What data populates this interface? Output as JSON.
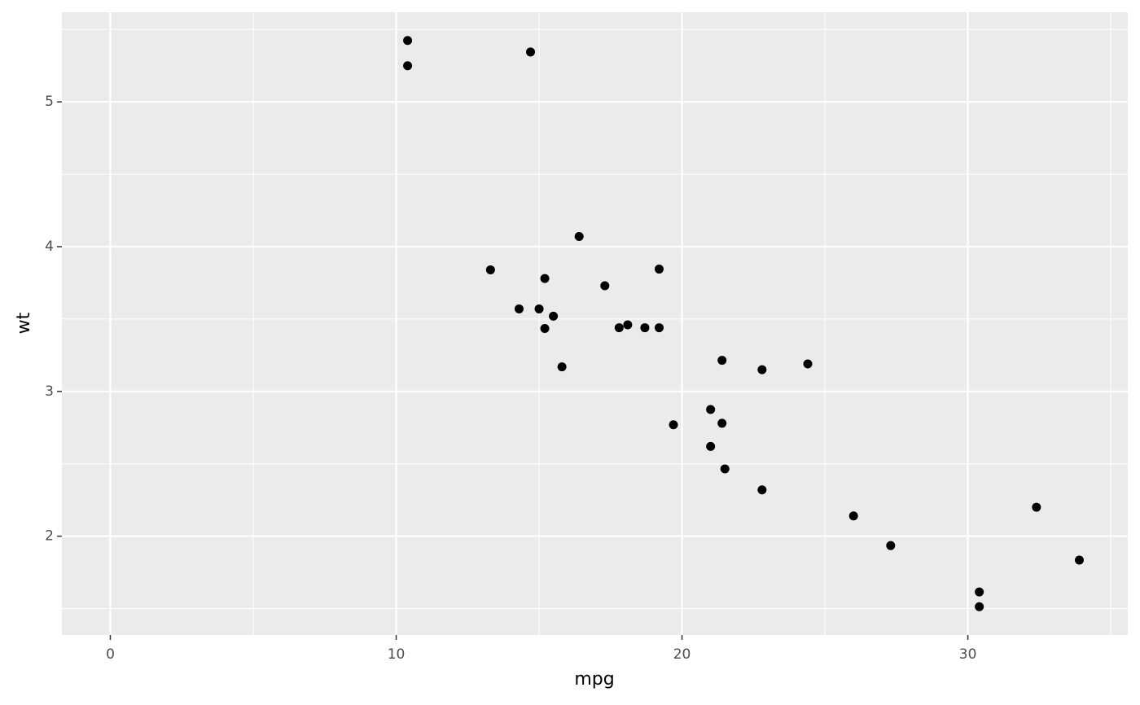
{
  "chart_data": {
    "type": "scatter",
    "x_label": "mpg",
    "y_label": "wt",
    "color": "#000000",
    "grid": true,
    "xlim": [
      -1.695,
      35.595
    ],
    "ylim": [
      1.31745,
      5.61955
    ],
    "xticks": [
      0,
      10,
      20,
      30
    ],
    "yticks": [
      2,
      3,
      4,
      5
    ],
    "xminorticks": [
      5,
      15,
      25,
      35
    ],
    "yminorticks": [
      1.5,
      2.5,
      3.5,
      4.5,
      5.5
    ],
    "x": [
      21.0,
      21.0,
      22.8,
      21.4,
      18.7,
      18.1,
      14.3,
      24.4,
      22.8,
      19.2,
      17.8,
      16.4,
      17.3,
      15.2,
      10.4,
      10.4,
      14.7,
      32.4,
      30.4,
      33.9,
      21.5,
      15.5,
      15.2,
      13.3,
      19.2,
      27.3,
      26.0,
      30.4,
      15.8,
      19.7,
      15.0,
      21.4
    ],
    "values": [
      2.62,
      2.875,
      2.32,
      3.215,
      3.44,
      3.46,
      3.57,
      3.19,
      3.15,
      3.44,
      3.44,
      4.07,
      3.73,
      3.78,
      5.25,
      5.424,
      5.345,
      2.2,
      1.615,
      1.835,
      2.465,
      3.52,
      3.435,
      3.84,
      3.845,
      1.935,
      2.14,
      1.513,
      3.17,
      2.77,
      3.57,
      2.78
    ]
  }
}
